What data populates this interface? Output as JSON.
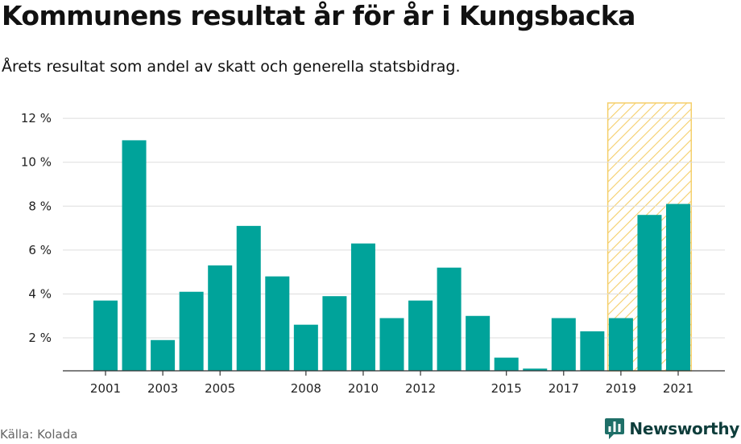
{
  "chart_data": {
    "type": "bar",
    "title": "Kommunens resultat år för år i Kungsbacka",
    "subtitle": "Årets resultat som andel av skatt och generella statsbidrag.",
    "categories": [
      "2001",
      "2002",
      "2003",
      "2004",
      "2005",
      "2006",
      "2007",
      "2008",
      "2009",
      "2010",
      "2011",
      "2012",
      "2013",
      "2014",
      "2015",
      "2016",
      "2017",
      "2018",
      "2019",
      "2020",
      "2021"
    ],
    "x_tick_labels": [
      "2001",
      "2003",
      "2005",
      "2008",
      "2010",
      "2012",
      "2015",
      "2017",
      "2019",
      "2021"
    ],
    "values": [
      3.7,
      11.0,
      1.9,
      4.1,
      5.3,
      7.1,
      4.8,
      2.6,
      3.9,
      6.3,
      2.9,
      3.7,
      5.2,
      3.0,
      1.1,
      0.6,
      2.9,
      2.3,
      2.9,
      7.6,
      8.1
    ],
    "y_ticks": [
      2,
      4,
      6,
      8,
      10,
      12
    ],
    "y_tick_labels": [
      "2 %",
      "4 %",
      "6 %",
      "8 %",
      "10 %",
      "12 %"
    ],
    "ylim": [
      0.5,
      12.7
    ],
    "highlight_range": [
      "2019",
      "2021"
    ],
    "grid": true,
    "colors": {
      "bar": "#00a39a",
      "highlight_stripe": "#f5cf6b",
      "grid": "#dddddd",
      "axis": "#333333"
    }
  },
  "source": "Källa: Kolada",
  "brand": {
    "name": "Newsworthy",
    "icon": "newsworthy-logo-icon",
    "color": "#0e3d3b"
  }
}
